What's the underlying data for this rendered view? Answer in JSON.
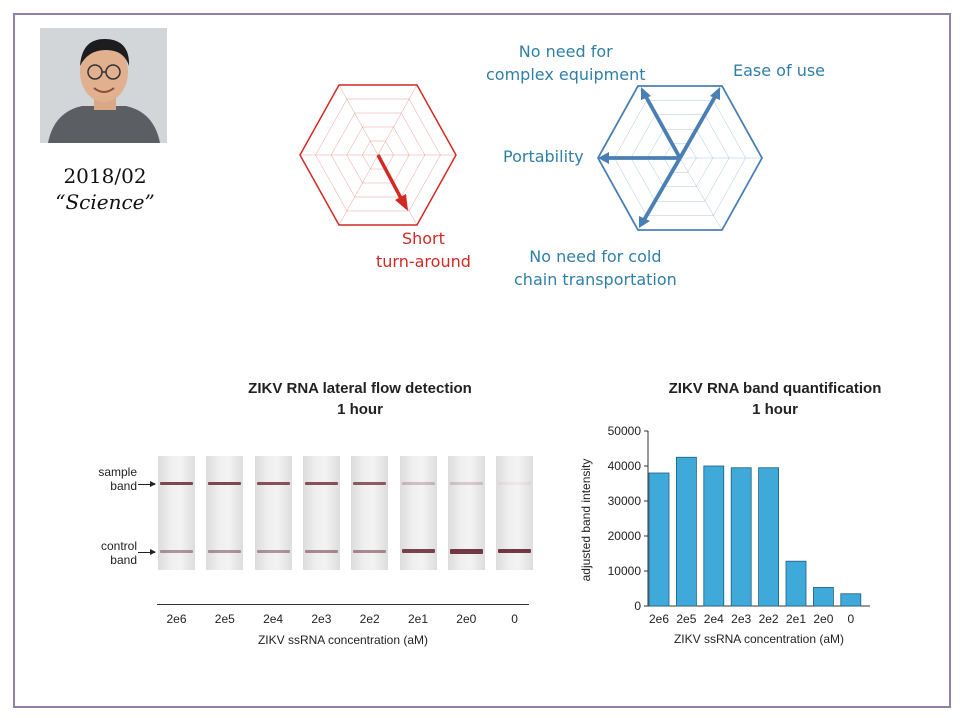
{
  "caption": {
    "date": "2018/02",
    "journal": "“Science”"
  },
  "radar_left": {
    "labels": [
      {
        "text": "Short\nturn-around"
      }
    ],
    "color": "#d22a23"
  },
  "radar_right": {
    "labels": [
      {
        "text": "No need for\ncomplex equipment"
      },
      {
        "text": "Ease of use"
      },
      {
        "text": "Portability"
      },
      {
        "text": "No need for cold\nchain transportation"
      }
    ],
    "color": "#4a7fb5"
  },
  "lateral_flow": {
    "title": "ZIKV RNA lateral flow detection",
    "subtitle": "1 hour",
    "sample_label": "sample\nband",
    "control_label": "control\nband",
    "concentrations": [
      "2e6",
      "2e5",
      "2e4",
      "2e3",
      "2e2",
      "2e1",
      "2e0",
      "0"
    ],
    "xlabel": "ZIKV ssRNA concentration (aM)"
  },
  "chart_data": {
    "type": "bar",
    "title": "ZIKV RNA band quantification",
    "subtitle": "1 hour",
    "categories": [
      "2e6",
      "2e5",
      "2e4",
      "2e3",
      "2e2",
      "2e1",
      "2e0",
      "0"
    ],
    "values": [
      38000,
      42500,
      40000,
      39500,
      39500,
      12800,
      5300,
      3500
    ],
    "xlabel": "ZIKV ssRNA concentration (aM)",
    "ylabel": "adjusted band intensity",
    "ylim": [
      0,
      50000
    ],
    "yticks": [
      0,
      10000,
      20000,
      30000,
      40000,
      50000
    ],
    "bar_color": "#3fa9d9",
    "grid": false
  }
}
